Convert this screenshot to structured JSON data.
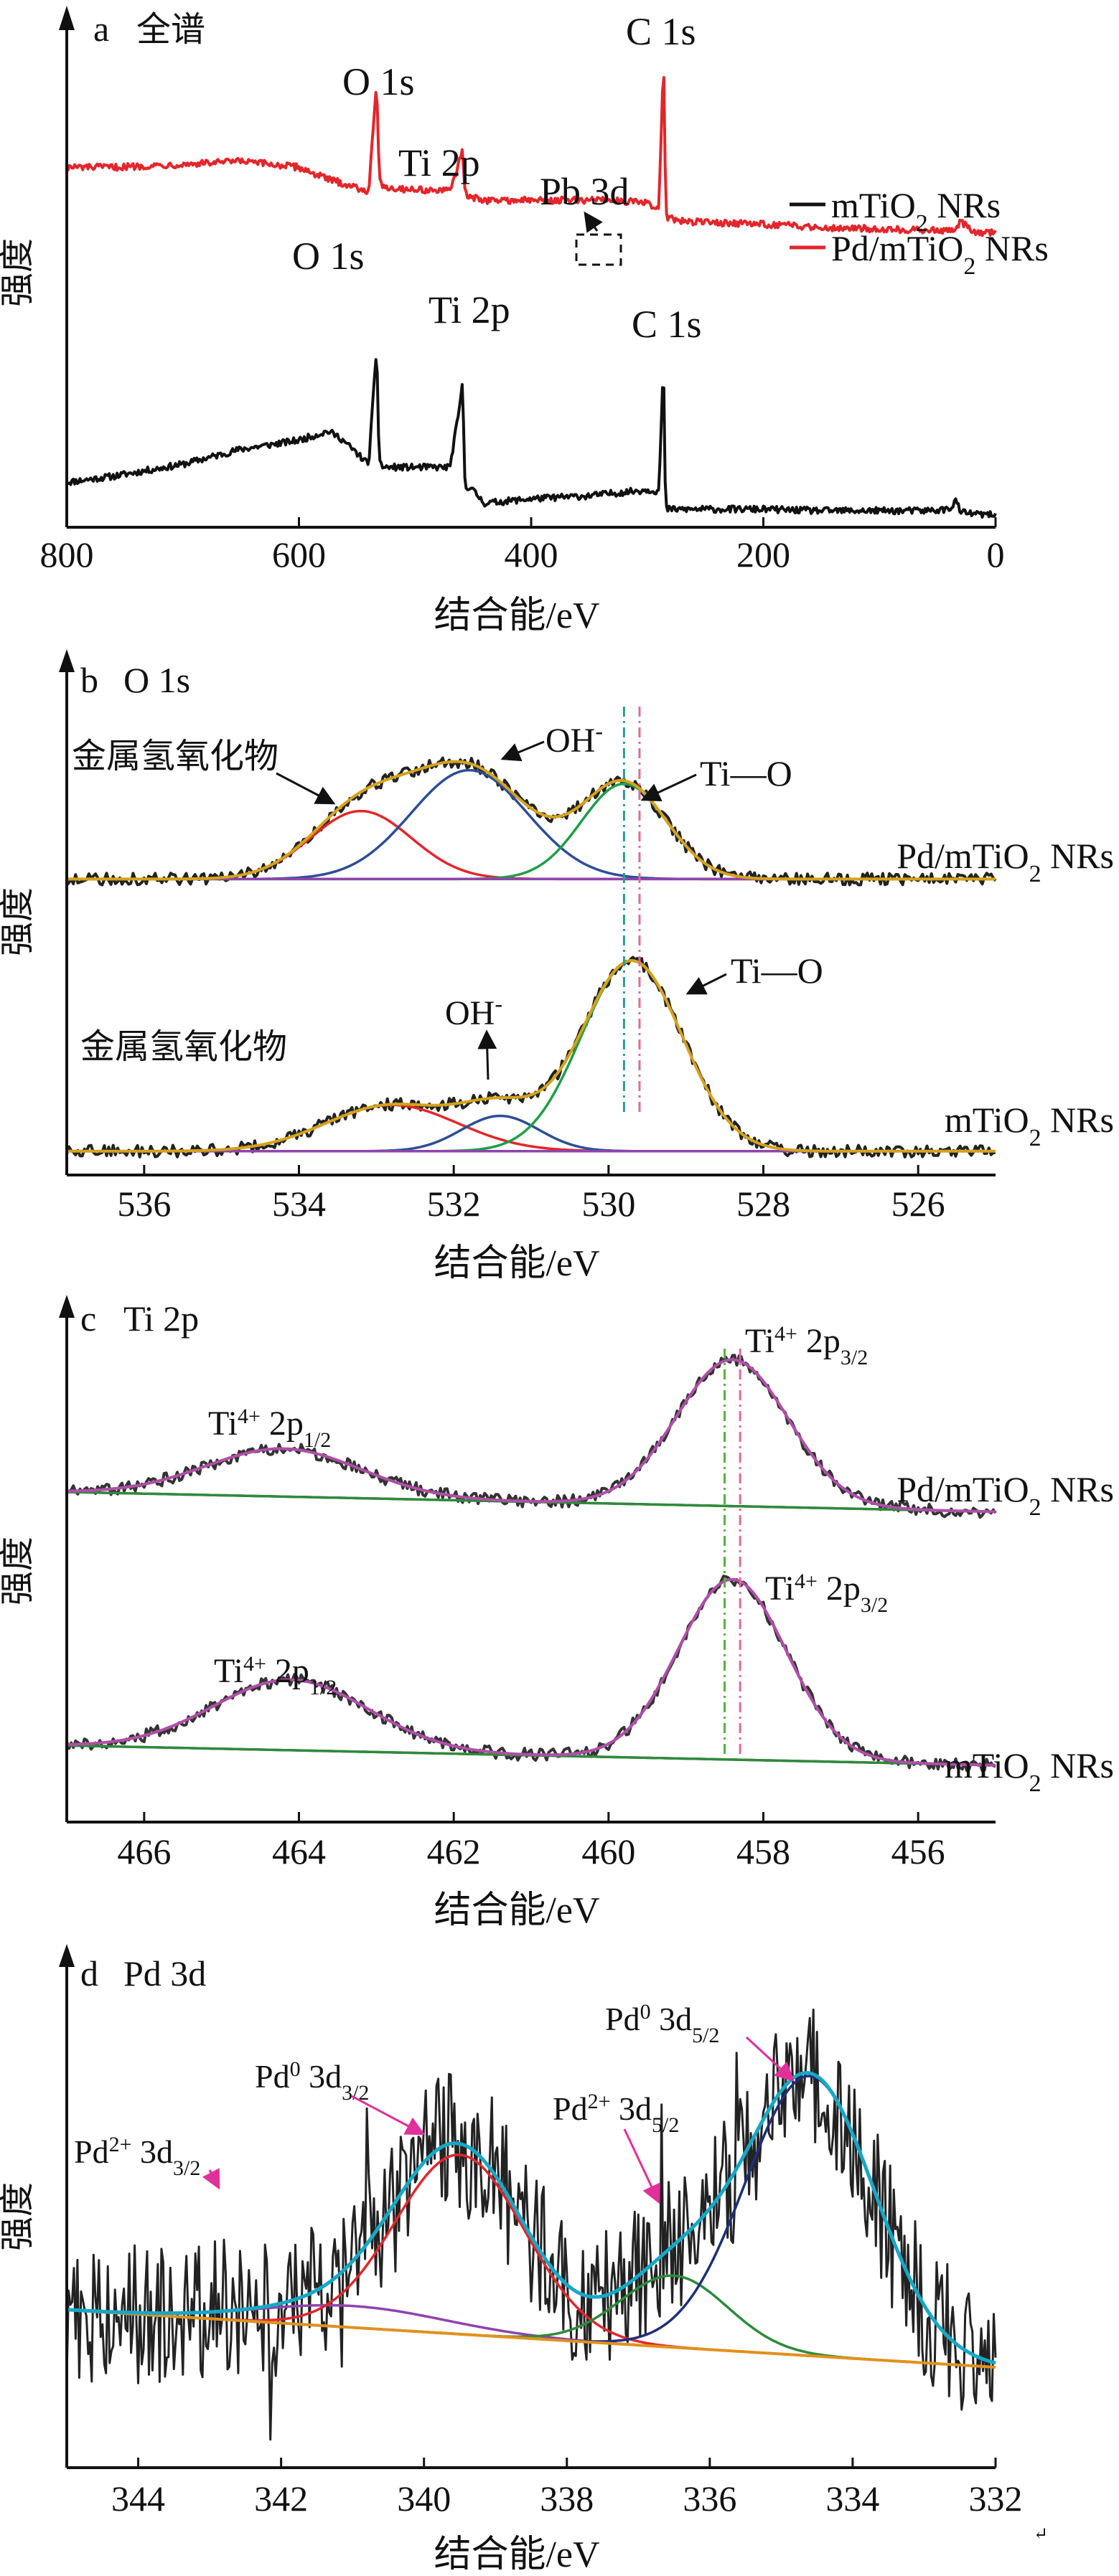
{
  "figure": {
    "colors": {
      "black": "#111111",
      "red": "#e3262b",
      "blue": "#2d4e96",
      "green": "#1f9e48",
      "gold": "#d6a21a",
      "purple": "#8e44ad",
      "magenta": "#b04fa8",
      "cyan": "#16a8c7",
      "navy": "#1d2f7a",
      "orange": "#e0921d",
      "dark_green": "#2e8b3a",
      "arrow_magenta": "#e0309a",
      "guide_green": "#56b03a",
      "guide_pink": "#e06a9c",
      "guide_teal": "#2a9d8f"
    },
    "corner_mark": "↵"
  },
  "chart_data": [
    {
      "id": "a",
      "type": "line",
      "panel_label": "a",
      "title": "全谱",
      "xlabel": "结合能/eV",
      "ylabel": "强度",
      "xlim": [
        800,
        0
      ],
      "x_ticks": [
        "800",
        "600",
        "400",
        "200",
        "0"
      ],
      "legend_position": "right",
      "series": [
        {
          "name": "mTiO2 NRs",
          "legend_label": {
            "pre": "mTiO",
            "sub": "2",
            "post": " NRs"
          },
          "color": "#111111",
          "x": [
            800,
            760,
            700,
            650,
            600,
            575,
            565,
            540,
            533,
            531,
            528,
            520,
            470,
            462,
            459,
            457,
            452,
            440,
            400,
            350,
            300,
            290,
            286,
            285,
            284,
            282,
            270,
            200,
            150,
            60,
            40,
            34,
            30,
            20,
            0
          ],
          "y": [
            1.5,
            1.7,
            2.1,
            2.6,
            2.9,
            3.2,
            3.0,
            2.1,
            6.0,
            2.3,
            2.0,
            2.0,
            2.0,
            3.9,
            4.8,
            1.4,
            1.3,
            0.8,
            0.95,
            1.05,
            1.25,
            1.2,
            5.5,
            2.3,
            0.6,
            0.6,
            0.6,
            0.6,
            0.55,
            0.55,
            0.6,
            0.9,
            0.5,
            0.45,
            0.4
          ]
        },
        {
          "name": "Pd/mTiO2 NRs",
          "legend_label": {
            "pre": "Pd/mTiO",
            "sub": "2",
            "post": " NRs"
          },
          "color": "#e3262b",
          "x": [
            800,
            760,
            700,
            650,
            600,
            575,
            565,
            540,
            533,
            531,
            528,
            520,
            470,
            462,
            459,
            457,
            452,
            440,
            400,
            350,
            340,
            300,
            290,
            286,
            285,
            284,
            282,
            270,
            200,
            150,
            60,
            40,
            34,
            30,
            20,
            0
          ],
          "y": [
            12.0,
            12.0,
            12.1,
            12.2,
            12.0,
            11.6,
            11.5,
            11.2,
            14.8,
            11.8,
            11.4,
            11.3,
            11.2,
            12.2,
            12.6,
            11.1,
            11.0,
            10.9,
            10.9,
            10.9,
            10.95,
            10.8,
            10.6,
            15.7,
            13.0,
            10.5,
            10.3,
            10.2,
            10.1,
            10.0,
            9.9,
            9.9,
            9.9,
            10.2,
            9.85,
            9.8
          ]
        }
      ],
      "annotations": [
        "O 1s",
        "Ti 2p",
        "Pb 3d",
        "C 1s",
        "O 1s",
        "Ti 2p",
        "C 1s"
      ]
    },
    {
      "id": "b",
      "type": "line",
      "panel_label": "b",
      "title": "O 1s",
      "xlabel": "结合能/eV",
      "ylabel": "强度",
      "xlim": [
        537,
        525
      ],
      "x_ticks": [
        "536",
        "534",
        "532",
        "530",
        "528",
        "526"
      ],
      "reference_lines": [
        529.6,
        529.8
      ],
      "groups": [
        {
          "name": "Pd/mTiO2 NRs",
          "label": {
            "pre": "Pd/mTiO",
            "sub": "2",
            "post": " NRs"
          },
          "baseline": 5.0,
          "components": [
            {
              "label": "金属氢氧化物",
              "center": 533.2,
              "sigma": 0.65,
              "height": 1.25,
              "color": "#e3262b"
            },
            {
              "label": "OH-",
              "center": 531.8,
              "sigma": 0.75,
              "height": 2.0,
              "color": "#2d4e96"
            },
            {
              "label": "Ti—O",
              "center": 529.8,
              "sigma": 0.55,
              "height": 1.75,
              "color": "#1f9e48"
            }
          ]
        },
        {
          "name": "mTiO2 NRs",
          "label": {
            "pre": "mTiO",
            "sub": "2",
            "post": " NRs"
          },
          "baseline": 0.0,
          "components": [
            {
              "label": "金属氢氧化物",
              "center": 532.8,
              "sigma": 0.85,
              "height": 0.85,
              "color": "#e3262b"
            },
            {
              "label": "OH-",
              "center": 531.4,
              "sigma": 0.5,
              "height": 0.65,
              "color": "#2d4e96"
            },
            {
              "label": "Ti—O",
              "center": 529.7,
              "sigma": 0.65,
              "height": 3.5,
              "color": "#1f9e48"
            }
          ]
        }
      ]
    },
    {
      "id": "c",
      "type": "line",
      "panel_label": "c",
      "title": "Ti 2p",
      "xlabel": "结合能/eV",
      "ylabel": "强度",
      "xlim": [
        467,
        455
      ],
      "x_ticks": [
        "466",
        "464",
        "462",
        "460",
        "458",
        "456"
      ],
      "reference_lines": [
        458.3,
        458.5
      ],
      "groups": [
        {
          "name": "Pd/mTiO2 NRs",
          "label": {
            "pre": "Pd/mTiO",
            "sub": "2",
            "post": " NRs"
          },
          "baseline": 4.5,
          "components": [
            {
              "label": "Ti4+ 2p1/2",
              "center": 464.2,
              "sigma": 1.0,
              "height": 0.85,
              "color": "#b04fa8"
            },
            {
              "label": "Ti4+ 2p3/2",
              "center": 458.4,
              "sigma": 0.72,
              "height": 2.6,
              "color": "#b04fa8"
            }
          ]
        },
        {
          "name": "mTiO2 NRs",
          "label": {
            "pre": "mTiO",
            "sub": "2",
            "post": " NRs"
          },
          "baseline": 0.0,
          "components": [
            {
              "label": "Ti4+ 2p1/2",
              "center": 464.1,
              "sigma": 1.0,
              "height": 1.25,
              "color": "#b04fa8"
            },
            {
              "label": "Ti4+ 2p3/2",
              "center": 458.4,
              "sigma": 0.7,
              "height": 3.2,
              "color": "#b04fa8"
            }
          ]
        }
      ]
    },
    {
      "id": "d",
      "type": "line",
      "panel_label": "d",
      "title": "Pd 3d",
      "xlabel": "结合能/eV",
      "ylabel": "强度",
      "xlim": [
        345,
        332
      ],
      "x_ticks": [
        "344",
        "342",
        "340",
        "338",
        "336",
        "334",
        "332"
      ],
      "baseline": {
        "x": [
          345,
          332
        ],
        "y": [
          1.0,
          0.2
        ]
      },
      "components": [
        {
          "label": "Pd2+ 3d3/2",
          "center": 341.0,
          "sigma": 1.3,
          "height": 0.3,
          "color": "#8e44ad"
        },
        {
          "label": "Pd0 3d3/2",
          "center": 339.5,
          "sigma": 0.9,
          "height": 2.5,
          "color": "#e3262b"
        },
        {
          "label": "Pd2+ 3d5/2",
          "center": 336.5,
          "sigma": 0.75,
          "height": 1.0,
          "color": "#2e8b3a"
        },
        {
          "label": "Pd0 3d5/2",
          "center": 334.6,
          "sigma": 0.9,
          "height": 3.9,
          "color": "#1d2f7a"
        }
      ]
    }
  ]
}
